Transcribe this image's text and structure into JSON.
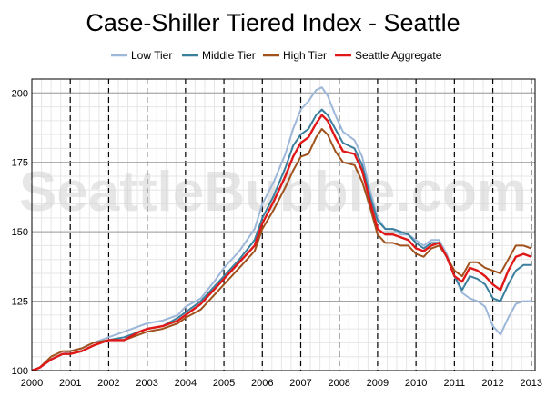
{
  "chart_data": {
    "type": "line",
    "title": "Case-Shiller Tiered Index - Seattle",
    "xlabel": "",
    "ylabel": "",
    "watermark": "SeattleBubble.com",
    "xlim": [
      2000.0,
      2013.1
    ],
    "ylim": [
      100,
      205
    ],
    "xticks": [
      "2000",
      "2001",
      "2002",
      "2003",
      "2004",
      "2005",
      "2006",
      "2007",
      "2008",
      "2009",
      "2010",
      "2011",
      "2012",
      "2013"
    ],
    "yticks": [
      "100",
      "125",
      "150",
      "175",
      "200"
    ],
    "grid": true,
    "legend_position": "top",
    "series": [
      {
        "name": "Low Tier",
        "color": "#9db7d9",
        "points": [
          [
            2000.0,
            100
          ],
          [
            2000.2,
            101
          ],
          [
            2000.5,
            104
          ],
          [
            2000.8,
            106
          ],
          [
            2001.0,
            107
          ],
          [
            2001.3,
            108
          ],
          [
            2001.6,
            110
          ],
          [
            2002.0,
            112
          ],
          [
            2002.4,
            114
          ],
          [
            2002.8,
            116
          ],
          [
            2003.0,
            117
          ],
          [
            2003.4,
            118
          ],
          [
            2003.8,
            120
          ],
          [
            2004.0,
            123
          ],
          [
            2004.4,
            126
          ],
          [
            2004.8,
            133
          ],
          [
            2005.0,
            137
          ],
          [
            2005.4,
            143
          ],
          [
            2005.8,
            151
          ],
          [
            2006.0,
            160
          ],
          [
            2006.3,
            168
          ],
          [
            2006.6,
            178
          ],
          [
            2006.8,
            187
          ],
          [
            2007.0,
            194
          ],
          [
            2007.2,
            197
          ],
          [
            2007.4,
            201
          ],
          [
            2007.55,
            202
          ],
          [
            2007.7,
            199
          ],
          [
            2007.9,
            192
          ],
          [
            2008.1,
            186
          ],
          [
            2008.4,
            183
          ],
          [
            2008.6,
            177
          ],
          [
            2008.8,
            165
          ],
          [
            2009.0,
            155
          ],
          [
            2009.2,
            151
          ],
          [
            2009.4,
            151
          ],
          [
            2009.6,
            149
          ],
          [
            2009.8,
            149
          ],
          [
            2010.0,
            147
          ],
          [
            2010.2,
            145
          ],
          [
            2010.4,
            147
          ],
          [
            2010.6,
            147
          ],
          [
            2010.8,
            142
          ],
          [
            2011.0,
            134
          ],
          [
            2011.2,
            128
          ],
          [
            2011.4,
            126
          ],
          [
            2011.6,
            125
          ],
          [
            2011.8,
            123
          ],
          [
            2012.0,
            116
          ],
          [
            2012.2,
            113
          ],
          [
            2012.4,
            119
          ],
          [
            2012.6,
            124
          ],
          [
            2012.8,
            125
          ],
          [
            2013.0,
            125
          ]
        ]
      },
      {
        "name": "Middle Tier",
        "color": "#3a7f9e",
        "points": [
          [
            2000.0,
            100
          ],
          [
            2000.2,
            101
          ],
          [
            2000.5,
            104
          ],
          [
            2000.8,
            106
          ],
          [
            2001.0,
            106
          ],
          [
            2001.3,
            107
          ],
          [
            2001.6,
            109
          ],
          [
            2002.0,
            111
          ],
          [
            2002.4,
            112
          ],
          [
            2002.8,
            114
          ],
          [
            2003.0,
            115
          ],
          [
            2003.4,
            116
          ],
          [
            2003.8,
            119
          ],
          [
            2004.0,
            121
          ],
          [
            2004.4,
            125
          ],
          [
            2004.8,
            131
          ],
          [
            2005.0,
            134
          ],
          [
            2005.4,
            140
          ],
          [
            2005.8,
            147
          ],
          [
            2006.0,
            155
          ],
          [
            2006.3,
            163
          ],
          [
            2006.6,
            173
          ],
          [
            2006.8,
            181
          ],
          [
            2007.0,
            185
          ],
          [
            2007.2,
            187
          ],
          [
            2007.4,
            192
          ],
          [
            2007.55,
            194
          ],
          [
            2007.7,
            192
          ],
          [
            2007.9,
            187
          ],
          [
            2008.1,
            182
          ],
          [
            2008.4,
            180
          ],
          [
            2008.6,
            174
          ],
          [
            2008.8,
            163
          ],
          [
            2009.0,
            154
          ],
          [
            2009.2,
            151
          ],
          [
            2009.4,
            151
          ],
          [
            2009.6,
            150
          ],
          [
            2009.8,
            149
          ],
          [
            2010.0,
            146
          ],
          [
            2010.2,
            144
          ],
          [
            2010.4,
            146
          ],
          [
            2010.6,
            146
          ],
          [
            2010.8,
            141
          ],
          [
            2011.0,
            134
          ],
          [
            2011.2,
            129
          ],
          [
            2011.4,
            134
          ],
          [
            2011.6,
            133
          ],
          [
            2011.8,
            131
          ],
          [
            2012.0,
            126
          ],
          [
            2012.2,
            125
          ],
          [
            2012.4,
            131
          ],
          [
            2012.6,
            136
          ],
          [
            2012.8,
            138
          ],
          [
            2013.0,
            138
          ]
        ]
      },
      {
        "name": "High Tier",
        "color": "#a0521d",
        "points": [
          [
            2000.0,
            100
          ],
          [
            2000.2,
            101
          ],
          [
            2000.5,
            105
          ],
          [
            2000.8,
            107
          ],
          [
            2001.0,
            107
          ],
          [
            2001.3,
            108
          ],
          [
            2001.6,
            110
          ],
          [
            2002.0,
            111
          ],
          [
            2002.4,
            111
          ],
          [
            2002.8,
            113
          ],
          [
            2003.0,
            114
          ],
          [
            2003.4,
            115
          ],
          [
            2003.8,
            117
          ],
          [
            2004.0,
            119
          ],
          [
            2004.4,
            122
          ],
          [
            2004.8,
            128
          ],
          [
            2005.0,
            131
          ],
          [
            2005.4,
            137
          ],
          [
            2005.8,
            143
          ],
          [
            2006.0,
            151
          ],
          [
            2006.3,
            158
          ],
          [
            2006.6,
            166
          ],
          [
            2006.8,
            172
          ],
          [
            2007.0,
            177
          ],
          [
            2007.2,
            178
          ],
          [
            2007.4,
            184
          ],
          [
            2007.55,
            187
          ],
          [
            2007.7,
            185
          ],
          [
            2007.9,
            179
          ],
          [
            2008.1,
            175
          ],
          [
            2008.4,
            174
          ],
          [
            2008.6,
            168
          ],
          [
            2008.8,
            159
          ],
          [
            2009.0,
            149
          ],
          [
            2009.2,
            146
          ],
          [
            2009.4,
            146
          ],
          [
            2009.6,
            145
          ],
          [
            2009.8,
            145
          ],
          [
            2010.0,
            142
          ],
          [
            2010.2,
            141
          ],
          [
            2010.4,
            144
          ],
          [
            2010.6,
            145
          ],
          [
            2010.8,
            141
          ],
          [
            2011.0,
            136
          ],
          [
            2011.2,
            134
          ],
          [
            2011.4,
            139
          ],
          [
            2011.6,
            139
          ],
          [
            2011.8,
            137
          ],
          [
            2012.0,
            136
          ],
          [
            2012.2,
            135
          ],
          [
            2012.4,
            140
          ],
          [
            2012.6,
            145
          ],
          [
            2012.8,
            145
          ],
          [
            2013.0,
            144
          ]
        ]
      },
      {
        "name": "Seattle Aggregate",
        "color": "#e01818",
        "points": [
          [
            2000.0,
            100
          ],
          [
            2000.2,
            101
          ],
          [
            2000.5,
            104
          ],
          [
            2000.8,
            106
          ],
          [
            2001.0,
            106
          ],
          [
            2001.3,
            107
          ],
          [
            2001.6,
            109
          ],
          [
            2002.0,
            111
          ],
          [
            2002.4,
            111
          ],
          [
            2002.8,
            114
          ],
          [
            2003.0,
            115
          ],
          [
            2003.4,
            116
          ],
          [
            2003.8,
            118
          ],
          [
            2004.0,
            120
          ],
          [
            2004.4,
            124
          ],
          [
            2004.8,
            130
          ],
          [
            2005.0,
            133
          ],
          [
            2005.4,
            139
          ],
          [
            2005.8,
            145
          ],
          [
            2006.0,
            153
          ],
          [
            2006.3,
            161
          ],
          [
            2006.6,
            170
          ],
          [
            2006.8,
            177
          ],
          [
            2007.0,
            182
          ],
          [
            2007.2,
            184
          ],
          [
            2007.4,
            189
          ],
          [
            2007.55,
            192
          ],
          [
            2007.7,
            190
          ],
          [
            2007.9,
            184
          ],
          [
            2008.1,
            179
          ],
          [
            2008.4,
            178
          ],
          [
            2008.6,
            172
          ],
          [
            2008.8,
            161
          ],
          [
            2009.0,
            151
          ],
          [
            2009.2,
            149
          ],
          [
            2009.4,
            149
          ],
          [
            2009.6,
            148
          ],
          [
            2009.8,
            147
          ],
          [
            2010.0,
            144
          ],
          [
            2010.2,
            143
          ],
          [
            2010.4,
            145
          ],
          [
            2010.6,
            146
          ],
          [
            2010.8,
            141
          ],
          [
            2011.0,
            134
          ],
          [
            2011.2,
            132
          ],
          [
            2011.4,
            137
          ],
          [
            2011.6,
            136
          ],
          [
            2011.8,
            134
          ],
          [
            2012.0,
            131
          ],
          [
            2012.2,
            129
          ],
          [
            2012.4,
            136
          ],
          [
            2012.6,
            141
          ],
          [
            2012.8,
            142
          ],
          [
            2013.0,
            141
          ]
        ]
      }
    ]
  }
}
